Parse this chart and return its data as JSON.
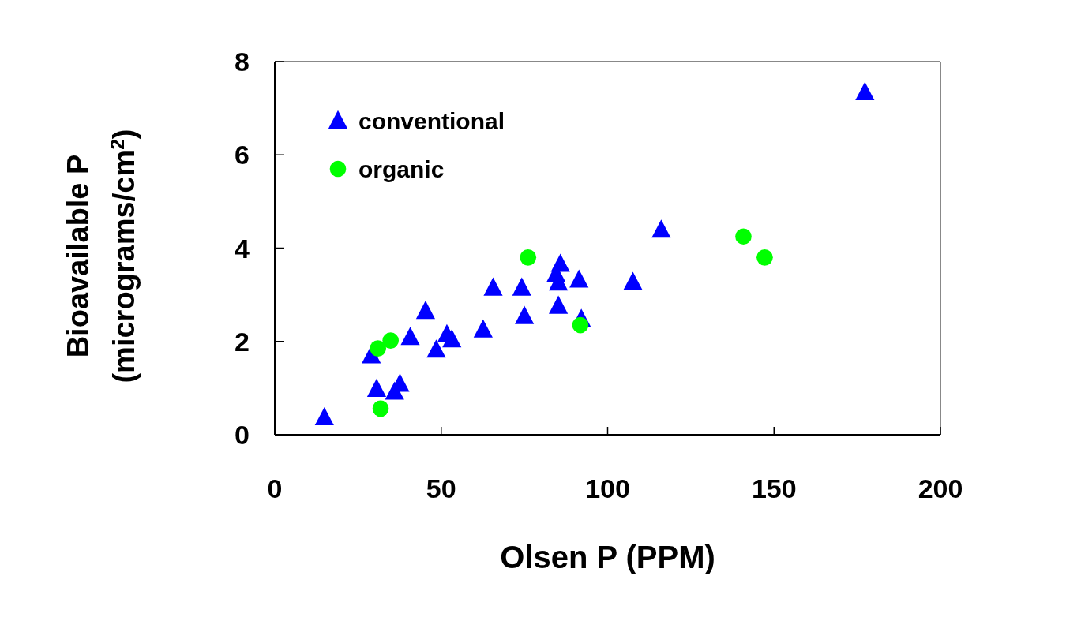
{
  "chart_data": {
    "type": "scatter",
    "xlabel": "Olsen P (PPM)",
    "ylabel": "Bioavailable P\n(micrograms/cm$^{2}$)",
    "xlim": [
      0,
      200
    ],
    "xticks": [
      0,
      50,
      100,
      150,
      200
    ],
    "ylim": [
      0,
      8
    ],
    "yticks": [
      0,
      2,
      4,
      6,
      8
    ],
    "grid": false,
    "legend": "top left",
    "series": [
      {
        "name": "conventional",
        "color": "#0000ff",
        "marker": "triangle",
        "x": [
          14.9,
          29.0,
          30.6,
          36.0,
          37.6,
          40.7,
          45.3,
          48.5,
          51.7,
          53.2,
          62.6,
          65.6,
          74.2,
          75.0,
          85.8,
          84.5,
          85.2,
          85.2,
          91.4,
          92.1,
          107.6,
          116.1,
          177.3
        ],
        "values": [
          0.37,
          1.7,
          0.98,
          0.92,
          1.09,
          2.09,
          2.65,
          1.82,
          2.15,
          2.04,
          2.25,
          3.15,
          3.15,
          2.54,
          3.66,
          3.44,
          3.26,
          2.76,
          3.32,
          2.48,
          3.27,
          4.39,
          7.34
        ]
      },
      {
        "name": "organic",
        "color": "#00ff00",
        "marker": "circle",
        "x": [
          31.0,
          34.8,
          31.8,
          76.1,
          91.8,
          140.8,
          147.2
        ],
        "values": [
          1.85,
          2.02,
          0.56,
          3.8,
          2.35,
          4.25,
          3.8
        ]
      }
    ]
  }
}
